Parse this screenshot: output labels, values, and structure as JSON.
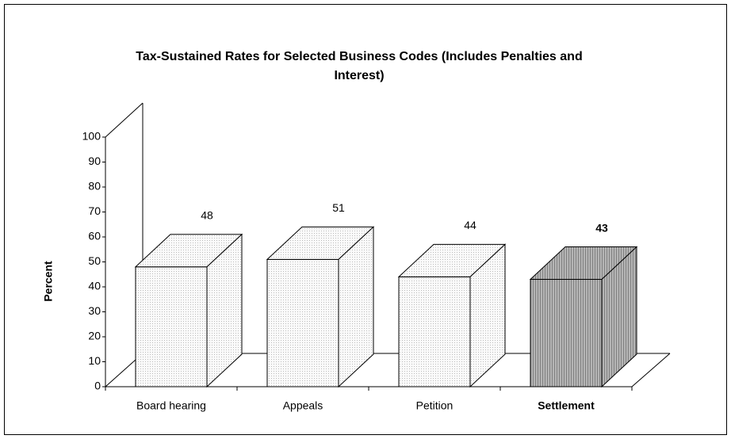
{
  "chart_data": {
    "type": "bar3d",
    "title": [
      "Tax-Sustained Rates for Selected Business Codes (Includes Penalties and",
      "Interest)"
    ],
    "ylabel": "Percent",
    "categories": [
      "Board hearing",
      "Appeals",
      "Petition",
      "Settlement"
    ],
    "values": [
      48,
      51,
      44,
      43
    ],
    "colors": [
      "#f2f2f2",
      "#f2f2f2",
      "#f2f2f2",
      "#a9a9a9"
    ],
    "bold_categories": [
      false,
      false,
      false,
      true
    ],
    "ylim": [
      0,
      100
    ],
    "yticks": [
      0,
      10,
      20,
      30,
      40,
      50,
      60,
      70,
      80,
      90,
      100
    ]
  }
}
